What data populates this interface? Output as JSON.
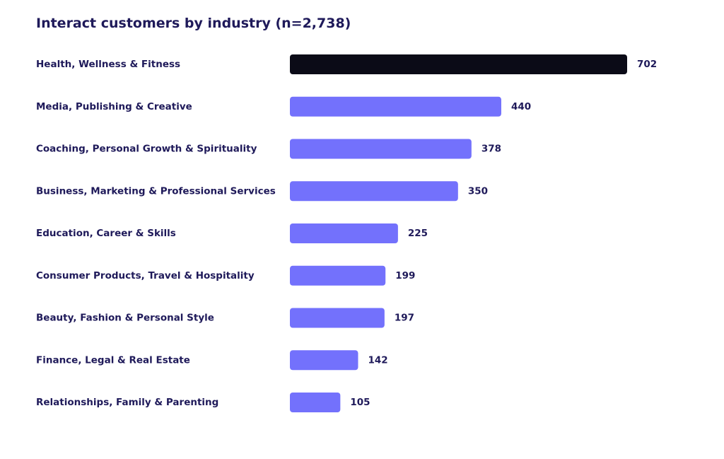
{
  "chart_data": {
    "type": "bar",
    "orientation": "horizontal",
    "title": "Interact customers by industry (n=2,738)",
    "categories": [
      "Health, Wellness & Fitness",
      "Media, Publishing & Creative",
      "Coaching, Personal Growth & Spirituality",
      "Business, Marketing & Professional Services",
      "Education, Career & Skills",
      "Consumer Products, Travel & Hospitality",
      "Beauty, Fashion & Personal Style",
      "Finance, Legal & Real Estate",
      "Relationships, Family & Parenting"
    ],
    "values": [
      702,
      440,
      378,
      350,
      225,
      199,
      197,
      142,
      105
    ],
    "data_labels": [
      "702",
      "440",
      "378",
      "350",
      "225",
      "199",
      "197",
      "142",
      "105"
    ],
    "xlim": [
      0,
      702
    ],
    "grid": false,
    "legend": "none",
    "colors": {
      "highlight_bar": "#0b0b17",
      "bar": "#7371fc",
      "text": "#1f1a5a"
    }
  }
}
